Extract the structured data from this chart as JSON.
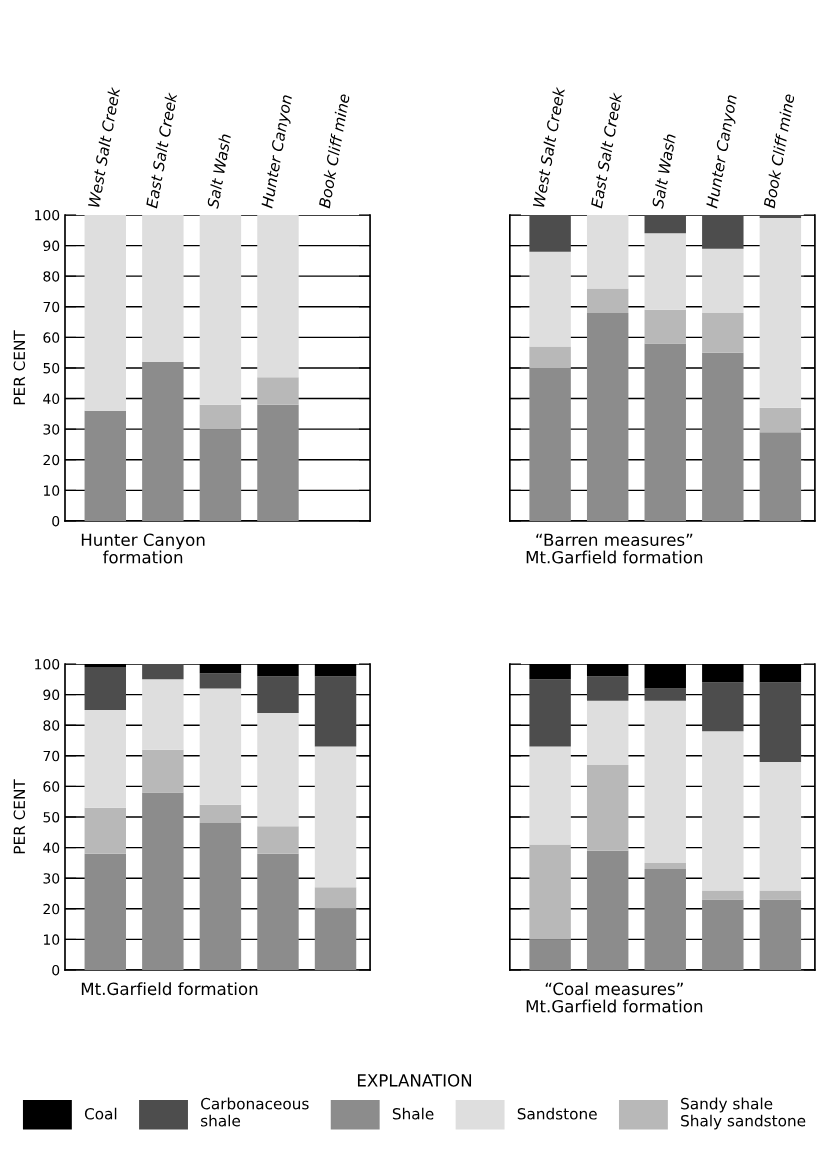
{
  "chart_data": [
    {
      "type": "bar",
      "stacked": true,
      "xlabel": "Hunter Canyon\nformation",
      "ylabel": "PER CENT",
      "categories": [
        "West Salt Creek",
        "East Salt Creek",
        "Salt Wash",
        "Hunter Canyon",
        "Book Cliff mine"
      ],
      "ylim": [
        0,
        100
      ],
      "yticks": [
        0,
        10,
        20,
        30,
        40,
        50,
        60,
        70,
        80,
        90,
        100
      ],
      "grid": "y",
      "series": [
        {
          "color": "#8c8c8c",
          "values": [
            36,
            52,
            30,
            38,
            null
          ]
        },
        {
          "color": "#b8b8b8",
          "values": [
            0,
            0,
            8,
            9,
            null
          ]
        },
        {
          "color": "#dedede",
          "values": [
            64,
            48,
            62,
            53,
            null
          ]
        }
      ]
    },
    {
      "type": "bar",
      "stacked": true,
      "xlabel": "“Barren measures”\nMt.Garfield formation",
      "tick_labels": "x",
      "categories": [
        "West Salt Creek",
        "East Salt Creek",
        "Salt Wash",
        "Hunter Canyon",
        "Book Cliff mine"
      ],
      "ylim": [
        0,
        100
      ],
      "yticks": [
        0,
        10,
        20,
        30,
        40,
        50,
        60,
        70,
        80,
        90,
        100
      ],
      "grid": "y",
      "series": [
        {
          "color": "#8c8c8c",
          "values": [
            50,
            68,
            58,
            55,
            29
          ]
        },
        {
          "color": "#b8b8b8",
          "values": [
            7,
            8,
            11,
            13,
            8
          ]
        },
        {
          "color": "#dedede",
          "values": [
            31,
            24,
            25,
            21,
            62
          ]
        },
        {
          "color": "#4d4d4d",
          "values": [
            12,
            0,
            6,
            11,
            1
          ]
        }
      ]
    },
    {
      "type": "bar",
      "stacked": true,
      "xlabel": "Mt.Garfield formation",
      "ylabel": "PER CENT",
      "tick_labels": "y",
      "categories": [
        null,
        null,
        null,
        null,
        null
      ],
      "ylim": [
        0,
        100
      ],
      "yticks": [
        0,
        10,
        20,
        30,
        40,
        50,
        60,
        70,
        80,
        90,
        100
      ],
      "grid": "y",
      "series": [
        {
          "color": "#8c8c8c",
          "values": [
            38,
            58,
            48,
            38,
            20
          ]
        },
        {
          "color": "#b8b8b8",
          "values": [
            15,
            14,
            6,
            9,
            7
          ]
        },
        {
          "color": "#dedede",
          "values": [
            32,
            23,
            38,
            37,
            46
          ]
        },
        {
          "color": "#4d4d4d",
          "values": [
            14,
            5,
            5,
            12,
            23
          ]
        },
        {
          "color": "#000000",
          "values": [
            1,
            0,
            3,
            4,
            4
          ]
        }
      ]
    },
    {
      "type": "bar",
      "stacked": true,
      "xlabel": "“Coal measures”\nMt.Garfield formation",
      "tick_labels": false,
      "categories": [
        null,
        null,
        null,
        null,
        null
      ],
      "legend": "bottom",
      "legend_title": "EXPLANATION",
      "ylim": [
        0,
        100
      ],
      "yticks": [
        0,
        10,
        20,
        30,
        40,
        50,
        60,
        70,
        80,
        90,
        100
      ],
      "grid": "y",
      "series": [
        {
          "name": "Shale",
          "color": "#8c8c8c",
          "values": [
            10,
            39,
            33,
            23,
            23
          ]
        },
        {
          "name": "Sandy shale\nShaly sandstone",
          "color": "#b8b8b8",
          "values": [
            31,
            28,
            2,
            3,
            3
          ]
        },
        {
          "name": "Sandstone",
          "color": "#dedede",
          "values": [
            32,
            21,
            53,
            52,
            42
          ]
        },
        {
          "name": "Carbonaceous\nshale",
          "color": "#4d4d4d",
          "values": [
            22,
            8,
            4,
            16,
            26
          ]
        },
        {
          "name": "Coal",
          "color": "#000000",
          "values": [
            5,
            4,
            8,
            6,
            6
          ]
        }
      ]
    }
  ]
}
